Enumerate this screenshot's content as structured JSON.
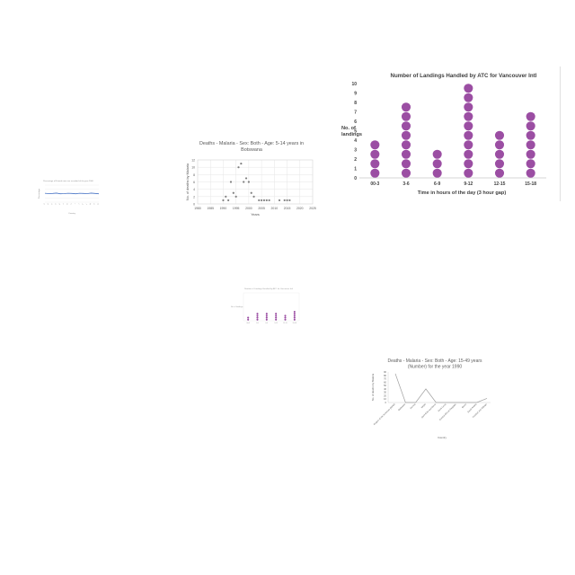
{
  "charts": {
    "landings": {
      "colors": {
        "dot": "#9b4ea3",
        "axis": "#c8c8c8",
        "text": "#404040"
      }
    },
    "botswana": {
      "colors": {
        "marker": "#7f7f7f",
        "grid": "#e6e6e6",
        "text": "#595959"
      }
    },
    "small_line": {
      "colors": {
        "line": "#4a76c8",
        "grid": "#e4e4e4",
        "text": "#8a8a8a"
      }
    },
    "mini_dot": {
      "colors": {
        "dot": "#9b4ea3",
        "grid": "#ececec",
        "text": "#9a9a9a"
      }
    },
    "deaths_1990": {
      "colors": {
        "line": "#a0a0a0",
        "axis": "#d0d0d0",
        "text": "#606060"
      }
    }
  },
  "chart_data": [
    {
      "id": "landings",
      "type": "scatter",
      "title": "Number of Landings Handled by ATC for Vancouver Intl",
      "xlabel": "Time in hours of the day (3 hour gap)",
      "ylabel": "No. of landings",
      "ylabel_lines": [
        "No. of",
        "landings"
      ],
      "categories": [
        "00-3",
        "3-6",
        "6-9",
        "9-12",
        "12-15",
        "15-18"
      ],
      "values": [
        4,
        8,
        3,
        10,
        5,
        7
      ],
      "yticks": [
        0,
        1,
        2,
        3,
        4,
        5,
        6,
        7,
        8,
        9,
        10
      ],
      "ylim": [
        0,
        10
      ],
      "grid": false,
      "style": "dot plot"
    },
    {
      "id": "botswana",
      "type": "scatter",
      "title": "Deaths - Malaria - Sex: Both - Age: 5-14 years in Botswana",
      "title_lines": [
        "Deaths - Malaria - Sex: Both - Age: 5-14 years in",
        "Botswana"
      ],
      "xlabel": "Years",
      "ylabel": "No. of deaths by Malaria",
      "xticks": [
        "1980",
        "1985",
        "1990",
        "1995",
        "2000",
        "2005",
        "2010",
        "2015",
        "2020",
        "2025"
      ],
      "yticks": [
        "0",
        "2",
        "4",
        "6",
        "8",
        "10",
        "12"
      ],
      "xlim": [
        1980,
        2025
      ],
      "ylim": [
        0,
        12
      ],
      "grid": true,
      "x": [
        1990,
        1991,
        1992,
        1993,
        1994,
        1995,
        1996,
        1997,
        1998,
        1999,
        2000,
        2001,
        2002,
        2004,
        2005,
        2006,
        2007,
        2008,
        2012,
        2014,
        2015,
        2016
      ],
      "y": [
        1,
        2,
        1,
        6,
        3,
        2,
        10,
        11,
        6,
        7,
        6,
        3,
        2,
        1,
        1,
        1,
        1,
        1,
        1,
        1,
        1,
        1
      ]
    },
    {
      "id": "small_line",
      "type": "line",
      "title": "Percentage of Female men are recorded of the year 2000",
      "xlabel": "Country",
      "ylabel": "Percentage",
      "categories": [
        "A",
        "B",
        "C",
        "D",
        "E",
        "F",
        "G",
        "H",
        "I",
        "J",
        "K",
        "L",
        "M",
        "N",
        "O"
      ],
      "values": [
        52,
        50,
        51,
        53,
        49,
        50,
        52,
        51,
        49,
        52,
        51,
        50,
        53,
        51,
        49
      ],
      "ylim": [
        0,
        100
      ],
      "grid": true
    },
    {
      "id": "mini_dot",
      "type": "scatter",
      "title": "Number of Landings Handled by ATC for Vancouver Intl",
      "xlabel": "",
      "ylabel": "No. of landings",
      "categories": [
        "00-3",
        "3-6",
        "6-9",
        "9-12",
        "12-15",
        "15-18"
      ],
      "values": [
        2,
        4,
        4,
        4,
        3,
        5
      ],
      "ylim": [
        0,
        10
      ],
      "grid": true,
      "style": "dot plot"
    },
    {
      "id": "deaths_1990",
      "type": "line",
      "title": "Deaths - Malaria - Sex: Both - Age: 15-49 years (Number) for the year 1990",
      "title_lines": [
        "Deaths - Malaria - Sex: Both - Age: 15-49 years",
        "(Number) for the year 1990"
      ],
      "xlabel": "Country",
      "ylabel": "No. of deaths by Malaria",
      "categories": [
        "Region of the Americas (WHO)",
        "Barbados",
        "Samoa",
        "Nepal",
        "Saint Kitts and Nevis",
        "Saint Lucia",
        "Central African Republic",
        "Benin",
        "Saudi Arabia",
        "Trinidad and Tobago"
      ],
      "values": [
        85,
        0,
        0,
        40,
        0,
        0,
        0,
        0,
        0,
        12
      ],
      "yticks": [
        "0",
        "10",
        "20",
        "30",
        "40",
        "50",
        "60",
        "70",
        "80",
        "90"
      ],
      "ylim": [
        0,
        90
      ],
      "grid": false
    }
  ]
}
